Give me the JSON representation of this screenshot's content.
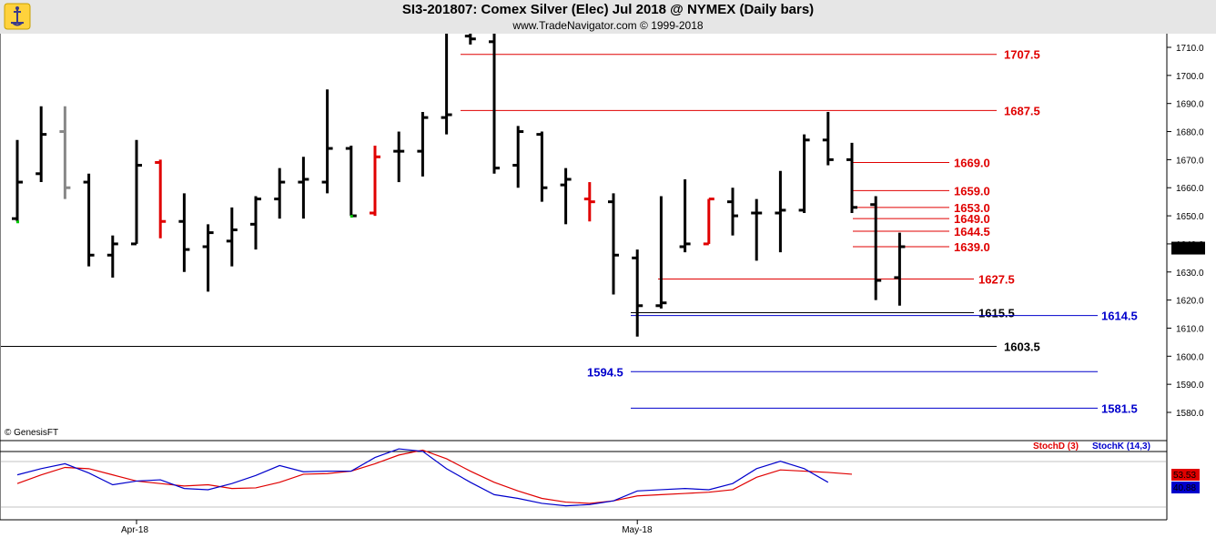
{
  "header": {
    "title": "SI3-201807:  Comex Silver (Elec) Jul 2018 @ NYMEX  (Daily bars)",
    "subtitle": "www.TradeNavigator.com © 1999-2018"
  },
  "footer": {
    "copyright": "© GenesisFT"
  },
  "colors": {
    "red": "#e00000",
    "blue": "#0000cc",
    "black": "#000000",
    "gray": "#888888",
    "green": "#00cc00"
  },
  "chart_data": [
    {
      "type": "ohlc",
      "ylim": [
        1575,
        1715
      ],
      "y_ticks": [
        1580.0,
        1590.0,
        1600.0,
        1610.0,
        1620.0,
        1630.0,
        1640.0,
        1650.0,
        1660.0,
        1670.0,
        1680.0,
        1690.0,
        1700.0,
        1710.0
      ],
      "last_price": "1638.5",
      "bars": [
        {
          "o": 1649,
          "h": 1677,
          "l": 1648,
          "c": 1662,
          "color": "black"
        },
        {
          "o": 1665,
          "h": 1689,
          "l": 1662,
          "c": 1679,
          "color": "black"
        },
        {
          "o": 1680,
          "h": 1689,
          "l": 1656,
          "c": 1660,
          "color": "gray"
        },
        {
          "o": 1662,
          "h": 1665,
          "l": 1632,
          "c": 1636,
          "color": "black"
        },
        {
          "o": 1636,
          "h": 1643,
          "l": 1628,
          "c": 1640,
          "color": "black"
        },
        {
          "o": 1640,
          "h": 1677,
          "l": 1640,
          "c": 1668,
          "color": "black"
        },
        {
          "o": 1669,
          "h": 1670,
          "l": 1642,
          "c": 1648,
          "color": "red"
        },
        {
          "o": 1648,
          "h": 1658,
          "l": 1630,
          "c": 1638,
          "color": "black"
        },
        {
          "o": 1639,
          "h": 1647,
          "l": 1623,
          "c": 1644,
          "color": "black"
        },
        {
          "o": 1641,
          "h": 1653,
          "l": 1632,
          "c": 1645,
          "color": "black"
        },
        {
          "o": 1647,
          "h": 1657,
          "l": 1638,
          "c": 1656,
          "color": "black"
        },
        {
          "o": 1656,
          "h": 1667,
          "l": 1649,
          "c": 1662,
          "color": "black"
        },
        {
          "o": 1662,
          "h": 1671,
          "l": 1649,
          "c": 1663,
          "color": "black"
        },
        {
          "o": 1662,
          "h": 1695,
          "l": 1658,
          "c": 1674,
          "color": "black"
        },
        {
          "o": 1674,
          "h": 1675,
          "l": 1650,
          "c": 1650,
          "color": "black"
        },
        {
          "o": 1651,
          "h": 1675,
          "l": 1650,
          "c": 1671,
          "color": "red"
        },
        {
          "o": 1673,
          "h": 1680,
          "l": 1662,
          "c": 1673,
          "color": "black"
        },
        {
          "o": 1673,
          "h": 1687,
          "l": 1664,
          "c": 1685,
          "color": "black"
        },
        {
          "o": 1685,
          "h": 1716,
          "l": 1679,
          "c": 1686,
          "color": "black"
        },
        {
          "o": 1714,
          "h": 1716,
          "l": 1711,
          "c": 1713,
          "color": "black"
        },
        {
          "o": 1712,
          "h": 1716,
          "l": 1665,
          "c": 1667,
          "color": "black"
        },
        {
          "o": 1668,
          "h": 1682,
          "l": 1660,
          "c": 1680,
          "color": "black"
        },
        {
          "o": 1679,
          "h": 1680,
          "l": 1655,
          "c": 1660,
          "color": "black"
        },
        {
          "o": 1661,
          "h": 1667,
          "l": 1647,
          "c": 1663,
          "color": "black"
        },
        {
          "o": 1656,
          "h": 1662,
          "l": 1648,
          "c": 1655,
          "color": "red"
        },
        {
          "o": 1655,
          "h": 1658,
          "l": 1622,
          "c": 1636,
          "color": "black"
        },
        {
          "o": 1635,
          "h": 1638,
          "l": 1607,
          "c": 1618,
          "color": "black"
        },
        {
          "o": 1618,
          "h": 1657,
          "l": 1617,
          "c": 1619,
          "color": "black"
        },
        {
          "o": 1639,
          "h": 1663,
          "l": 1637,
          "c": 1640,
          "color": "black"
        },
        {
          "o": 1640,
          "h": 1656,
          "l": 1640,
          "c": 1656,
          "color": "red"
        },
        {
          "o": 1655,
          "h": 1660,
          "l": 1643,
          "c": 1650,
          "color": "black"
        },
        {
          "o": 1651,
          "h": 1656,
          "l": 1634,
          "c": 1651,
          "color": "black"
        },
        {
          "o": 1651,
          "h": 1666,
          "l": 1637,
          "c": 1652,
          "color": "black"
        },
        {
          "o": 1652,
          "h": 1679,
          "l": 1651,
          "c": 1677,
          "color": "black"
        },
        {
          "o": 1677,
          "h": 1687,
          "l": 1668,
          "c": 1670,
          "color": "black"
        },
        {
          "o": 1670,
          "h": 1676,
          "l": 1651,
          "c": 1653,
          "color": "black"
        },
        {
          "o": 1654,
          "h": 1657,
          "l": 1620,
          "c": 1627,
          "color": "black"
        },
        {
          "o": 1628,
          "h": 1644,
          "l": 1618,
          "c": 1639,
          "color": "black"
        }
      ],
      "levels": [
        {
          "value": 1707.5,
          "label": "1707.5",
          "color": "red"
        },
        {
          "value": 1687.5,
          "label": "1687.5",
          "color": "red"
        },
        {
          "value": 1669.0,
          "label": "1669.0",
          "color": "red"
        },
        {
          "value": 1659.0,
          "label": "1659.0",
          "color": "red"
        },
        {
          "value": 1653.0,
          "label": "1653.0",
          "color": "red"
        },
        {
          "value": 1649.0,
          "label": "1649.0",
          "color": "red"
        },
        {
          "value": 1644.5,
          "label": "1644.5",
          "color": "red"
        },
        {
          "value": 1639.0,
          "label": "1639.0",
          "color": "red"
        },
        {
          "value": 1627.5,
          "label": "1627.5",
          "color": "red"
        },
        {
          "value": 1615.5,
          "label": "1615.5",
          "color": "black"
        },
        {
          "value": 1614.5,
          "label": "1614.5",
          "color": "blue"
        },
        {
          "value": 1603.5,
          "label": "1603.5",
          "color": "black"
        },
        {
          "value": 1594.5,
          "label": "1594.5",
          "color": "blue"
        },
        {
          "value": 1581.5,
          "label": "1581.5",
          "color": "blue"
        }
      ],
      "x_labels": [
        {
          "bar": 5,
          "label": "Apr-18"
        },
        {
          "bar": 26,
          "label": "May-18"
        }
      ]
    },
    {
      "type": "line",
      "ylim": [
        0,
        100
      ],
      "series": [
        {
          "name": "StochD (3)",
          "color": "red",
          "last_label": "53.53",
          "values": [
            38,
            52,
            64,
            62,
            52,
            42,
            38,
            34,
            36,
            30,
            31,
            40,
            53,
            54,
            58,
            70,
            84,
            92,
            78,
            58,
            40,
            26,
            14,
            8,
            6,
            10,
            18,
            20,
            22,
            24,
            28,
            48,
            60,
            58,
            56,
            53
          ]
        },
        {
          "name": "StochK (14,3)",
          "color": "blue",
          "last_label": "40.88",
          "values": [
            52,
            62,
            70,
            55,
            36,
            42,
            44,
            30,
            28,
            38,
            51,
            67,
            57,
            58,
            58,
            80,
            94,
            90,
            62,
            40,
            20,
            14,
            6,
            2,
            4,
            10,
            26,
            28,
            30,
            28,
            38,
            62,
            74,
            62,
            40
          ]
        }
      ]
    }
  ]
}
